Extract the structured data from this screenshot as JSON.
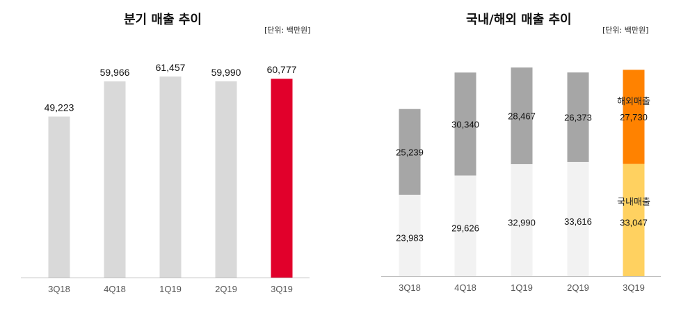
{
  "chart_data": [
    {
      "type": "bar",
      "title": "분기 매출 추이",
      "unit": "[단위: 백만원]",
      "categories": [
        "3Q18",
        "4Q18",
        "1Q19",
        "2Q19",
        "3Q19"
      ],
      "values": [
        49223,
        59966,
        61457,
        59990,
        60777
      ],
      "value_labels": [
        "49,223",
        "59,966",
        "61,457",
        "59,990",
        "60,777"
      ],
      "ylim": [
        0,
        70000
      ],
      "grid": false,
      "colors": {
        "default": "#d9d9d9",
        "highlight": "#e1002b"
      },
      "highlight_index": 4
    },
    {
      "type": "bar",
      "stacked": true,
      "title": "국내/해외 매출 추이",
      "unit": "[단위: 백만원]",
      "categories": [
        "3Q18",
        "4Q18",
        "1Q19",
        "2Q19",
        "3Q19"
      ],
      "ylim": [
        0,
        70000
      ],
      "grid": false,
      "series": [
        {
          "name": "국내매출",
          "values": [
            23983,
            29626,
            32990,
            33616,
            33047
          ],
          "value_labels": [
            "23,983",
            "29,626",
            "32,990",
            "33,616",
            "33,047"
          ],
          "color": "#f2f2f2",
          "highlight_color": "#ffd160"
        },
        {
          "name": "해외매출",
          "values": [
            25239,
            30340,
            28467,
            26373,
            27730
          ],
          "value_labels": [
            "25,239",
            "30,340",
            "28,467",
            "26,373",
            "27,730"
          ],
          "color": "#a6a6a6",
          "highlight_color": "#ff8200"
        }
      ],
      "highlight_index": 4
    }
  ]
}
